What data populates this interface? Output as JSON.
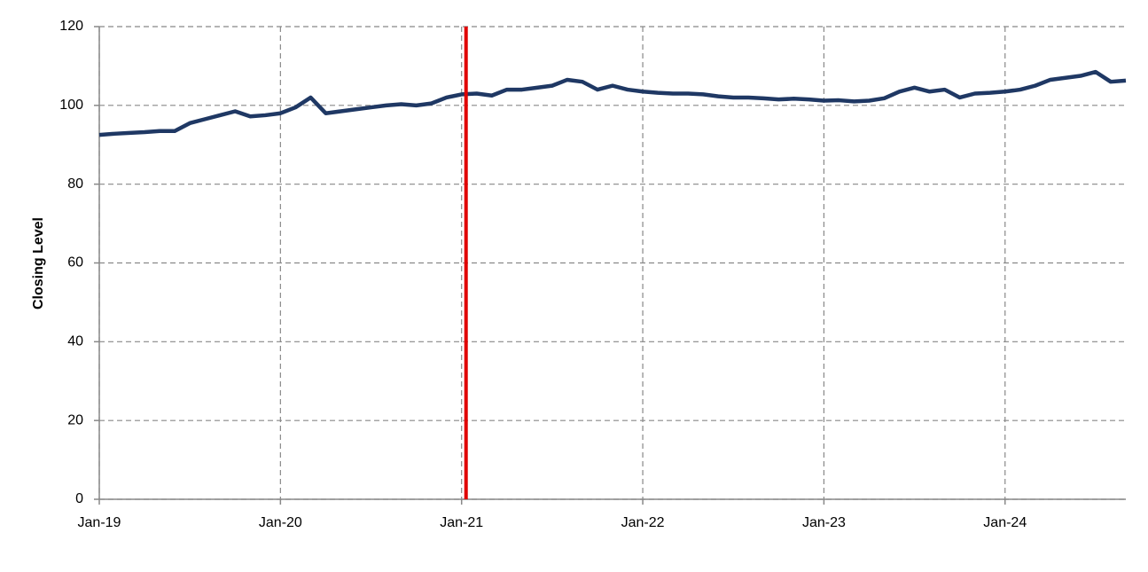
{
  "chart_data": {
    "type": "line",
    "y_label": "Closing Level",
    "x": [
      "Jan-19",
      "Feb-19",
      "Mar-19",
      "Apr-19",
      "May-19",
      "Jun-19",
      "Jul-19",
      "Aug-19",
      "Sep-19",
      "Oct-19",
      "Nov-19",
      "Dec-19",
      "Jan-20",
      "Feb-20",
      "Mar-20",
      "Apr-20",
      "May-20",
      "Jun-20",
      "Jul-20",
      "Aug-20",
      "Sep-20",
      "Oct-20",
      "Nov-20",
      "Dec-20",
      "Jan-21",
      "Feb-21",
      "Mar-21",
      "Apr-21",
      "May-21",
      "Jun-21",
      "Jul-21",
      "Aug-21",
      "Sep-21",
      "Oct-21",
      "Nov-21",
      "Dec-21",
      "Jan-22",
      "Feb-22",
      "Mar-22",
      "Apr-22",
      "May-22",
      "Jun-22",
      "Jul-22",
      "Aug-22",
      "Sep-22",
      "Oct-22",
      "Nov-22",
      "Dec-22",
      "Jan-23",
      "Feb-23",
      "Mar-23",
      "Apr-23",
      "May-23",
      "Jun-23",
      "Jul-23",
      "Aug-23",
      "Sep-23",
      "Oct-23",
      "Nov-23",
      "Dec-23",
      "Jan-24",
      "Feb-24",
      "Mar-24",
      "Apr-24",
      "May-24",
      "Jun-24",
      "Jul-24",
      "Aug-24",
      "Sep-24"
    ],
    "series": [
      {
        "color": "#1f3864",
        "values": [
          92.5,
          92.8,
          93,
          93.2,
          93.5,
          93.5,
          95.5,
          96.5,
          97.5,
          98.5,
          97.2,
          97.5,
          98,
          99.5,
          102,
          98,
          98.5,
          99,
          99.5,
          100,
          100.3,
          100,
          100.5,
          102,
          102.8,
          103,
          102.5,
          104,
          104,
          104.5,
          105,
          106.5,
          106,
          104,
          105,
          104,
          103.5,
          103.2,
          103,
          103,
          102.8,
          102.3,
          102,
          102,
          101.8,
          101.5,
          101.7,
          101.5,
          101.2,
          101.3,
          101,
          101.2,
          101.8,
          103.5,
          104.5,
          103.5,
          104,
          102,
          103,
          103.2,
          103.5,
          104,
          105,
          106.5,
          107,
          107.5,
          108.5,
          106,
          106.3
        ]
      }
    ],
    "xlim": [
      "Jan-19",
      "Sep-24"
    ],
    "xticks": [
      "Jan-19",
      "Jan-20",
      "Jan-21",
      "Jan-22",
      "Jan-23",
      "Jan-24"
    ],
    "ylim": [
      0,
      120
    ],
    "yticks": [
      0,
      20,
      40,
      60,
      80,
      100,
      120
    ],
    "grid": true,
    "vline": {
      "x": "Jan-21",
      "color": "#e00000"
    }
  }
}
